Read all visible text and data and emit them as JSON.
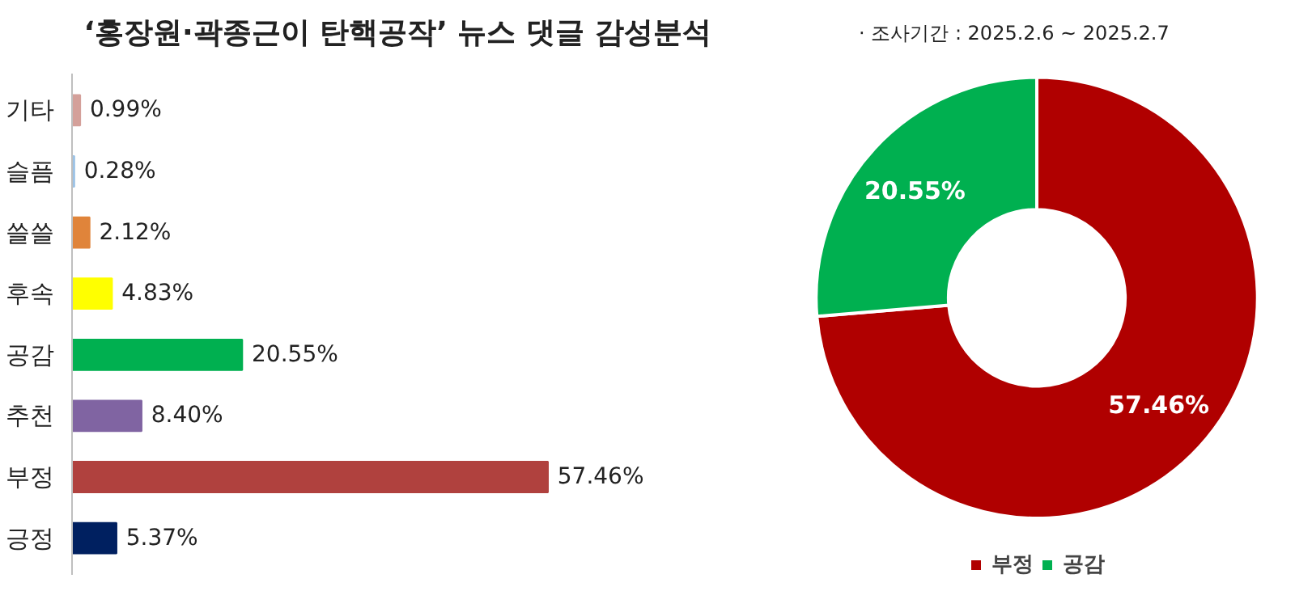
{
  "chart_data": [
    {
      "type": "bar",
      "orientation": "horizontal",
      "title": "‘홍장원·곽종근이 탄핵공작’ 뉴스 댓글 감성분석",
      "categories": [
        "기타",
        "슬픔",
        "쓸쓸",
        "후속",
        "공감",
        "추천",
        "부정",
        "긍정"
      ],
      "values": [
        0.99,
        0.28,
        2.12,
        4.83,
        20.55,
        8.4,
        57.46,
        5.37
      ],
      "colors": [
        "#d4a09a",
        "#9dc3e6",
        "#e0843a",
        "#ffff00",
        "#00b050",
        "#8064a2",
        "#b0413e",
        "#002060"
      ],
      "value_labels": [
        "0.99%",
        "0.28%",
        "2.12%",
        "4.83%",
        "20.55%",
        "8.40%",
        "57.46%",
        "5.37%"
      ],
      "grid": false,
      "legend": false
    },
    {
      "type": "donut",
      "subtitle": "·   조사기간 : 2025.2.6 ~ 2025.2.7",
      "categories": [
        "부정",
        "공감"
      ],
      "values": [
        57.46,
        20.55
      ],
      "colors": [
        "#b00000",
        "#00b050"
      ],
      "value_labels": [
        "57.46%",
        "20.55%"
      ],
      "legend": "bottom"
    }
  ]
}
